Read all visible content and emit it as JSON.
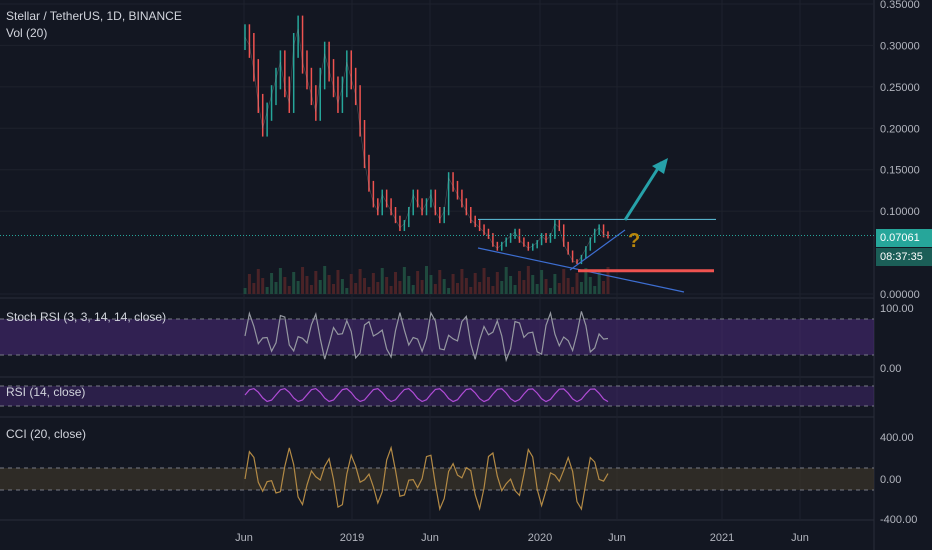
{
  "header": {
    "symbol_line": "Stellar / TetherUS, 1D, BINANCE",
    "volume_label": "Vol (20)"
  },
  "indicators": {
    "stoch_rsi": {
      "label": "Stoch RSI (3, 3, 14, 14, close)",
      "levels": [
        0,
        100
      ]
    },
    "rsi": {
      "label": "RSI (14, close)"
    },
    "cci": {
      "label": "CCI (20, close)",
      "levels": [
        -400,
        0,
        400
      ]
    }
  },
  "price_tags": {
    "last_price": "0.07061",
    "countdown": "08:37:35"
  },
  "chart_data": {
    "type": "line",
    "title": "Stellar / TetherUS, 1D, BINANCE",
    "x_tick_labels": [
      "Jun",
      "2019",
      "Jun",
      "2020",
      "Jun",
      "2021",
      "Jun"
    ],
    "y_tick_labels": [
      "0.35000",
      "0.30000",
      "0.25000",
      "0.20000",
      "0.15000",
      "0.10000",
      "0.00000"
    ],
    "stoch_tick_labels": [
      "100.00",
      "0.00"
    ],
    "cci_tick_labels": [
      "400.00",
      "0.00",
      "-400.00"
    ],
    "ylim": [
      0,
      0.35
    ],
    "series": [
      {
        "name": "",
        "values": [
          0.31,
          0.3,
          0.27,
          0.23,
          0.2,
          0.22,
          0.24,
          0.26,
          0.28,
          0.25,
          0.23,
          0.3,
          0.32,
          0.28,
          0.26,
          0.24,
          0.22,
          0.26,
          0.29,
          0.27,
          0.25,
          0.23,
          0.25,
          0.28,
          0.26,
          0.24,
          0.2,
          0.16,
          0.13,
          0.11,
          0.1,
          0.12,
          0.11,
          0.1,
          0.09,
          0.08,
          0.085,
          0.1,
          0.12,
          0.11,
          0.1,
          0.11,
          0.12,
          0.1,
          0.09,
          0.1,
          0.14,
          0.13,
          0.12,
          0.11,
          0.1,
          0.09,
          0.085,
          0.08,
          0.075,
          0.07,
          0.06,
          0.055,
          0.06,
          0.065,
          0.07,
          0.075,
          0.065,
          0.06,
          0.055,
          0.058,
          0.062,
          0.07,
          0.065,
          0.07,
          0.085,
          0.08,
          0.06,
          0.05,
          0.04,
          0.038,
          0.045,
          0.055,
          0.065,
          0.075,
          0.08,
          0.072,
          0.0706
        ]
      }
    ],
    "annotations": {
      "resistance_level": 0.09,
      "support_level": 0.028,
      "current_price": 0.07061,
      "question_mark": "?"
    }
  }
}
